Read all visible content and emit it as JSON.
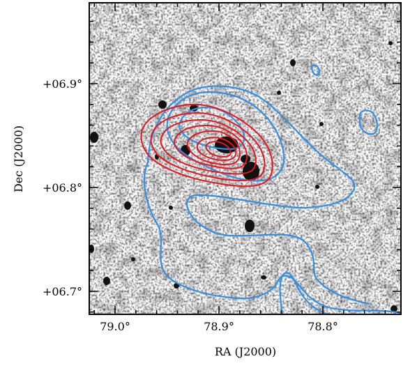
{
  "figure": {
    "x_axis_label": "RA (J2000)",
    "y_axis_label": "Dec (J2000)",
    "x_ticks": [
      "79.0°",
      "78.9°",
      "78.8°"
    ],
    "y_ticks": [
      "+06.9°",
      "+06.8°",
      "+06.7°"
    ],
    "x_range_deg": [
      79.03,
      78.73
    ],
    "y_range_deg": [
      6.677,
      6.977
    ],
    "background": "grayscale optical image (inverted)",
    "contours": [
      {
        "color": "#e8131b",
        "levels_shown": 7
      },
      {
        "color": "#2f8fe6",
        "levels_shown": 3
      }
    ]
  },
  "colors": {
    "red_contour": "#e8131b",
    "blue_contour": "#2f8fe6",
    "frame": "#000000"
  }
}
